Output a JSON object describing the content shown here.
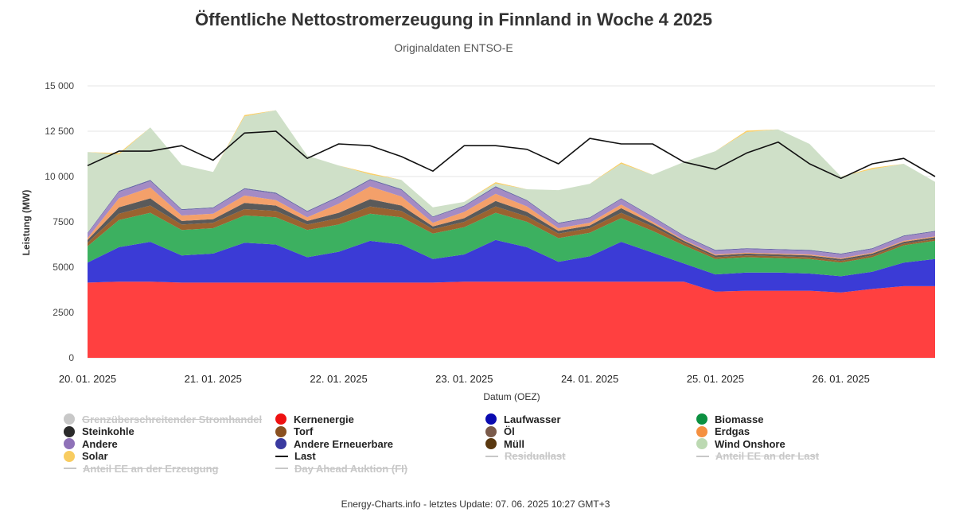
{
  "chart_data": {
    "type": "area",
    "title": "Öffentliche Nettostromerzeugung in Finnland in Woche 4 2025",
    "subtitle": "Originaldaten ENTSO-E",
    "ylabel": "Leistung (MW)",
    "xlabel": "Datum (OEZ)",
    "ylim": [
      0,
      15000
    ],
    "yticks": [
      "0",
      "2500",
      "5000",
      "7500",
      "10 000",
      "12 500",
      "15 000"
    ],
    "ytick_values": [
      0,
      2500,
      5000,
      7500,
      10000,
      12500,
      15000
    ],
    "xlim": [
      0,
      162
    ],
    "xticks": [
      "20. 01. 2025",
      "21. 01. 2025",
      "22. 01. 2025",
      "23. 01. 2025",
      "24. 01. 2025",
      "25. 01. 2025",
      "26. 01. 2025"
    ],
    "xtick_hours": [
      0,
      24,
      48,
      72,
      96,
      120,
      144
    ],
    "grid": true,
    "legend_position": "bottom",
    "x_hours": [
      0,
      6,
      12,
      18,
      24,
      30,
      36,
      42,
      48,
      54,
      60,
      66,
      72,
      78,
      84,
      90,
      96,
      102,
      108,
      114,
      120,
      126,
      132,
      138,
      144,
      150,
      156,
      162
    ],
    "series": [
      {
        "name": "Kernenergie",
        "color": "#ff4040",
        "values": [
          4150,
          4200,
          4200,
          4150,
          4150,
          4150,
          4150,
          4150,
          4150,
          4150,
          4150,
          4150,
          4200,
          4200,
          4200,
          4200,
          4200,
          4200,
          4200,
          4200,
          3650,
          3700,
          3700,
          3700,
          3600,
          3800,
          3950,
          3950
        ]
      },
      {
        "name": "Laufwasser",
        "color": "#3b3bd6",
        "values": [
          1100,
          1900,
          2200,
          1500,
          1600,
          2200,
          2100,
          1400,
          1700,
          2300,
          2100,
          1300,
          1500,
          2300,
          1900,
          1100,
          1400,
          2200,
          1600,
          1000,
          950,
          1000,
          1000,
          950,
          900,
          950,
          1300,
          1500
        ]
      },
      {
        "name": "Biomasse",
        "color": "#3cb060",
        "values": [
          900,
          1500,
          1600,
          1400,
          1400,
          1500,
          1500,
          1500,
          1500,
          1500,
          1500,
          1400,
          1500,
          1500,
          1400,
          1300,
          1300,
          1300,
          1200,
          1000,
          850,
          850,
          800,
          800,
          750,
          800,
          950,
          1000
        ]
      },
      {
        "name": "Torf",
        "color": "#9a6330",
        "values": [
          200,
          350,
          400,
          300,
          300,
          350,
          350,
          300,
          350,
          400,
          350,
          250,
          300,
          350,
          300,
          250,
          250,
          300,
          250,
          150,
          100,
          100,
          100,
          100,
          100,
          100,
          100,
          100
        ]
      },
      {
        "name": "Steinkohle",
        "color": "#5a5a5a",
        "values": [
          150,
          350,
          400,
          200,
          200,
          350,
          300,
          200,
          300,
          400,
          300,
          150,
          200,
          300,
          250,
          150,
          150,
          250,
          150,
          100,
          100,
          100,
          100,
          100,
          100,
          100,
          100,
          100
        ]
      },
      {
        "name": "Erdgas",
        "color": "#f4a06a",
        "values": [
          100,
          500,
          600,
          300,
          300,
          400,
          300,
          200,
          500,
          700,
          500,
          200,
          350,
          400,
          300,
          150,
          150,
          200,
          100,
          50,
          50,
          50,
          50,
          50,
          50,
          50,
          50,
          50
        ]
      },
      {
        "name": "Andere",
        "color": "#a48bc4",
        "values": [
          250,
          350,
          350,
          300,
          300,
          350,
          350,
          300,
          350,
          350,
          350,
          300,
          300,
          350,
          300,
          250,
          250,
          300,
          250,
          200,
          200,
          200,
          200,
          200,
          200,
          200,
          250,
          250
        ]
      },
      {
        "name": "Andere Erneuerbare",
        "color": "#6a6aa8",
        "values": [
          50,
          60,
          60,
          50,
          50,
          60,
          60,
          50,
          60,
          60,
          60,
          50,
          50,
          60,
          50,
          50,
          50,
          50,
          50,
          50,
          50,
          50,
          50,
          50,
          50,
          50,
          50,
          50
        ]
      },
      {
        "name": "Wind Onshore",
        "color": "#cfe0c8",
        "values": [
          4450,
          2000,
          2900,
          2450,
          1950,
          3950,
          4550,
          3050,
          1700,
          250,
          500,
          500,
          200,
          150,
          600,
          1800,
          1850,
          1900,
          2300,
          4050,
          5450,
          6400,
          6600,
          5850,
          4250,
          4350,
          3950,
          2700
        ]
      },
      {
        "name": "Solar",
        "color": "#f8cf6a",
        "values": [
          0,
          80,
          0,
          0,
          0,
          80,
          0,
          0,
          0,
          80,
          0,
          0,
          0,
          80,
          0,
          0,
          0,
          80,
          0,
          0,
          0,
          80,
          0,
          0,
          0,
          80,
          0,
          0
        ]
      }
    ],
    "last": {
      "name": "Last",
      "color": "#111111",
      "values": [
        10600,
        11400,
        11400,
        11700,
        10900,
        12400,
        12500,
        11000,
        11800,
        11700,
        11100,
        10300,
        11700,
        11700,
        11500,
        10700,
        12100,
        11800,
        11800,
        10800,
        10400,
        11300,
        11900,
        10700,
        9900,
        10700,
        11000,
        10000
      ]
    },
    "legend": [
      {
        "label": "Grenzüberschreitender Stromhandel",
        "symbol": "dot",
        "color": "#c8c8c8",
        "active": false
      },
      {
        "label": "Kernenergie",
        "symbol": "dot",
        "color": "#ee1111",
        "active": true
      },
      {
        "label": "Laufwasser",
        "symbol": "dot",
        "color": "#0a0ab0",
        "active": true
      },
      {
        "label": "Biomasse",
        "symbol": "dot",
        "color": "#0b9040",
        "active": true
      },
      {
        "label": "Steinkohle",
        "symbol": "dot",
        "color": "#2a2a2a",
        "active": true
      },
      {
        "label": "Torf",
        "symbol": "dot",
        "color": "#8a5020",
        "active": true
      },
      {
        "label": "Öl",
        "symbol": "dot",
        "color": "#7a5a4a",
        "active": true
      },
      {
        "label": "Erdgas",
        "symbol": "dot",
        "color": "#f59040",
        "active": true
      },
      {
        "label": "Andere",
        "symbol": "dot",
        "color": "#8f72b8",
        "active": true
      },
      {
        "label": "Andere Erneuerbare",
        "symbol": "dot",
        "color": "#3a3aa0",
        "active": true
      },
      {
        "label": "Müll",
        "symbol": "dot",
        "color": "#5a3810",
        "active": true
      },
      {
        "label": "Wind Onshore",
        "symbol": "dot",
        "color": "#bcd9b2",
        "active": true
      },
      {
        "label": "Solar",
        "symbol": "dot",
        "color": "#f8cc60",
        "active": true
      },
      {
        "label": "Last",
        "symbol": "line",
        "color": "#111111",
        "active": true
      },
      {
        "label": "Residuallast",
        "symbol": "line",
        "color": "#c8c8c8",
        "active": false
      },
      {
        "label": "Anteil EE an der Last",
        "symbol": "line",
        "color": "#c8c8c8",
        "active": false
      },
      {
        "label": "Anteil EE an der Erzeugung",
        "symbol": "line",
        "color": "#c8c8c8",
        "active": false
      },
      {
        "label": "Day Ahead Auktion (FI)",
        "symbol": "line",
        "color": "#c8c8c8",
        "active": false
      }
    ]
  },
  "footer": "Energy-Charts.info - letztes Update: 07. 06. 2025 10:27 GMT+3"
}
